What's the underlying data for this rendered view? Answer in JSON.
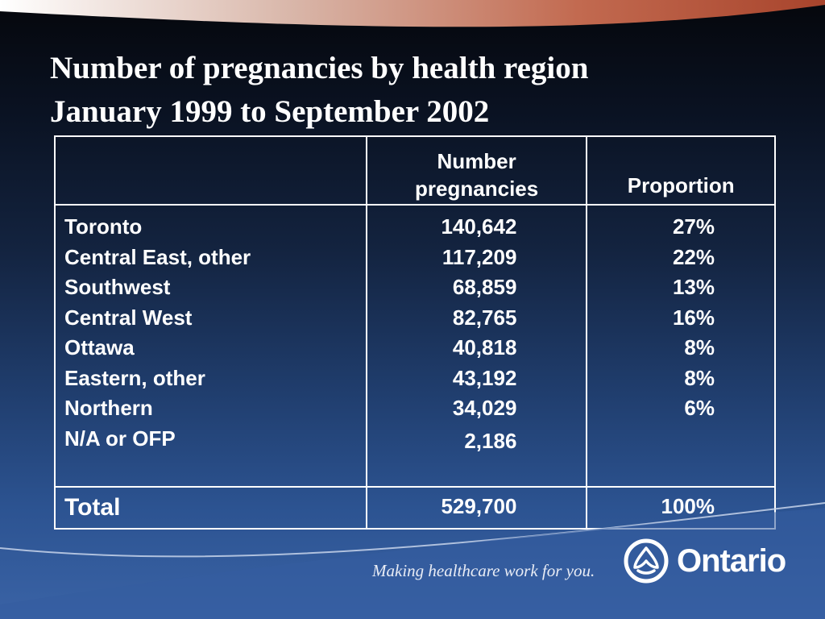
{
  "slide": {
    "title_line1": "Number of pregnancies by health region",
    "title_line2": "January 1999 to September 2002"
  },
  "table": {
    "headers": {
      "region": "",
      "number_line1": "Number",
      "number_line2": "pregnancies",
      "proportion": "Proportion"
    },
    "rows": [
      {
        "region": "Toronto",
        "number": "140,642",
        "proportion": "27%"
      },
      {
        "region": "Central East, other",
        "number": "117,209",
        "proportion": "22%"
      },
      {
        "region": "Southwest",
        "number": "68,859",
        "proportion": "13%"
      },
      {
        "region": "Central West",
        "number": "82,765",
        "proportion": "16%"
      },
      {
        "region": "Ottawa",
        "number": "40,818",
        "proportion": "8%"
      },
      {
        "region": "Eastern, other",
        "number": "43,192",
        "proportion": "8%"
      },
      {
        "region": "Northern",
        "number": "34,029",
        "proportion": "6%"
      },
      {
        "region": "N/A or OFP",
        "number": "2,186",
        "proportion": ""
      }
    ],
    "total": {
      "label": "Total",
      "number": "529,700",
      "proportion": "100%"
    }
  },
  "footer": {
    "tagline": "Making healthcare work for you.",
    "logo_text": "Ontario",
    "logo_icon": "trillium-icon"
  },
  "colors": {
    "accent_band": "#c8705a",
    "text": "#ffffff"
  }
}
